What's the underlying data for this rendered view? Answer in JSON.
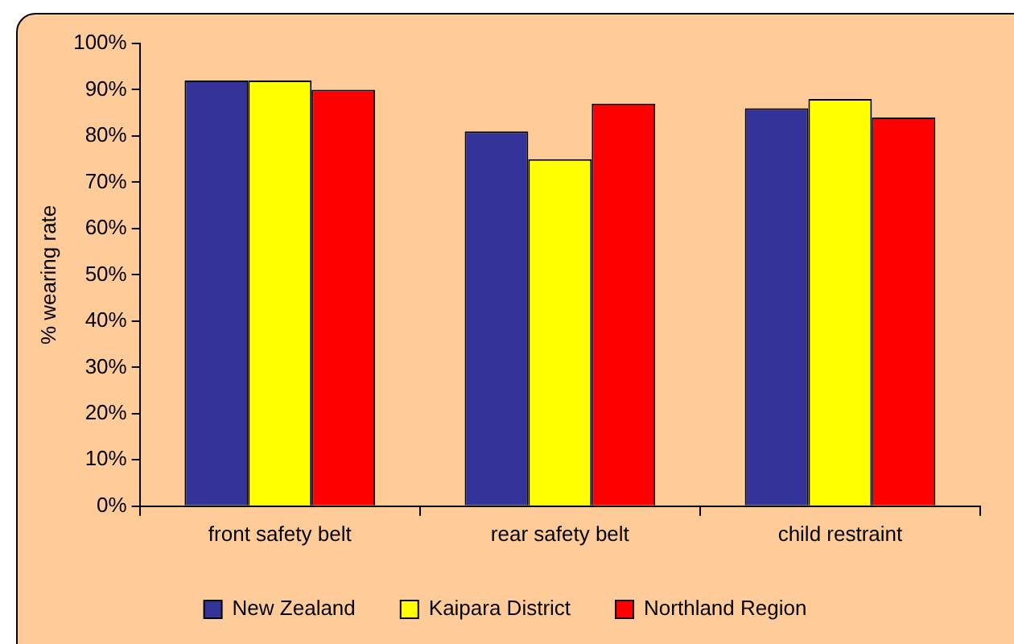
{
  "chart_data": {
    "type": "bar",
    "ylabel": "% wearing rate",
    "categories": [
      "front safety belt",
      "rear safety belt",
      "child restraint"
    ],
    "series": [
      {
        "name": "New Zealand",
        "color": "#333399",
        "values": [
          92,
          81,
          86
        ]
      },
      {
        "name": "Kaipara District",
        "color": "#ffff00",
        "values": [
          92,
          75,
          88
        ]
      },
      {
        "name": "Northland Region",
        "color": "#ff0000",
        "values": [
          90,
          87,
          84
        ]
      }
    ],
    "ylim": [
      0,
      100
    ],
    "yticks": [
      {
        "value": 0,
        "label": "0%"
      },
      {
        "value": 10,
        "label": "10%"
      },
      {
        "value": 20,
        "label": "20%"
      },
      {
        "value": 30,
        "label": "30%"
      },
      {
        "value": 40,
        "label": "40%"
      },
      {
        "value": 50,
        "label": "50%"
      },
      {
        "value": 60,
        "label": "60%"
      },
      {
        "value": 70,
        "label": "70%"
      },
      {
        "value": 80,
        "label": "80%"
      },
      {
        "value": 90,
        "label": "90%"
      },
      {
        "value": 100,
        "label": "100%"
      }
    ],
    "grid": false,
    "legend": "bottom"
  }
}
